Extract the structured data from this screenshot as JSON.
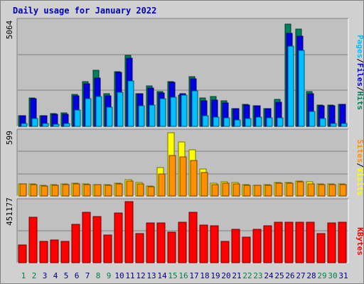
{
  "title": "Daily usage for January 2022",
  "colors": {
    "hits": "#00805c",
    "files": "#0000e0",
    "pages": "#00c0ff",
    "visits": "#ffff00",
    "sites": "#ff9000",
    "kbytes": "#ff0000",
    "weekday_label": "#000080",
    "weekend_label": "#00804a",
    "panel_bg": "#c0c0c0",
    "frame_bg": "#d0d0d0",
    "title": "#0000c0"
  },
  "chart_data": [
    {
      "type": "bar",
      "title": "Daily usage for January 2022",
      "categories": [
        "1",
        "2",
        "3",
        "4",
        "5",
        "6",
        "7",
        "8",
        "9",
        "10",
        "11",
        "12",
        "13",
        "14",
        "15",
        "16",
        "17",
        "18",
        "19",
        "20",
        "21",
        "22",
        "23",
        "24",
        "25",
        "26",
        "27",
        "28",
        "29",
        "30",
        "31"
      ],
      "weekend_days": [
        1,
        2,
        8,
        9,
        15,
        16,
        22,
        23,
        29,
        30
      ],
      "ymax_label": "5064",
      "ylim": [
        0,
        5064
      ],
      "grid": true,
      "ylabel_parts": [
        "Pages",
        "/",
        "Files",
        "/",
        "Hits"
      ],
      "series": [
        {
          "name": "Hits",
          "values": [
            530,
            1370,
            530,
            600,
            640,
            1530,
            2140,
            2710,
            1560,
            2650,
            3420,
            1580,
            1950,
            1690,
            2170,
            1510,
            2400,
            1360,
            1440,
            1240,
            870,
            1070,
            1000,
            870,
            1300,
            4940,
            4680,
            1660,
            1030,
            1030,
            1070
          ]
        },
        {
          "name": "Files",
          "values": [
            510,
            1330,
            500,
            570,
            590,
            1460,
            2060,
            2330,
            1480,
            2590,
            3280,
            1560,
            1840,
            1620,
            2120,
            1590,
            2290,
            1220,
            1260,
            1140,
            840,
            1030,
            990,
            840,
            1160,
            4470,
            4330,
            1580,
            990,
            990,
            1050
          ]
        },
        {
          "name": "Pages",
          "values": [
            130,
            380,
            120,
            110,
            130,
            800,
            1340,
            1450,
            930,
            1640,
            2200,
            1000,
            1020,
            1320,
            1410,
            1490,
            1700,
            530,
            440,
            410,
            300,
            380,
            440,
            400,
            420,
            3880,
            3670,
            720,
            370,
            140,
            140
          ]
        }
      ]
    },
    {
      "type": "bar",
      "categories": [
        "1",
        "2",
        "3",
        "4",
        "5",
        "6",
        "7",
        "8",
        "9",
        "10",
        "11",
        "12",
        "13",
        "14",
        "15",
        "16",
        "17",
        "18",
        "19",
        "20",
        "21",
        "22",
        "23",
        "24",
        "25",
        "26",
        "27",
        "28",
        "29",
        "30",
        "31"
      ],
      "ymax_label": "599",
      "ylim": [
        0,
        599
      ],
      "grid": true,
      "ylabel_parts": [
        "Sites",
        "/",
        "Visits"
      ],
      "series": [
        {
          "name": "Visits",
          "values": [
            115,
            112,
            97,
            106,
            115,
            121,
            112,
            108,
            108,
            121,
            155,
            128,
            93,
            268,
            592,
            504,
            433,
            250,
            120,
            130,
            128,
            105,
            103,
            108,
            128,
            126,
            139,
            130,
            115,
            116,
            114
          ]
        },
        {
          "name": "Sites",
          "values": [
            110,
            106,
            93,
            100,
            108,
            115,
            105,
            104,
            103,
            115,
            139,
            114,
            88,
            208,
            382,
            367,
            331,
            220,
            104,
            117,
            114,
            100,
            99,
            103,
            118,
            118,
            133,
            114,
            108,
            109,
            107
          ]
        }
      ]
    },
    {
      "type": "bar",
      "categories": [
        "1",
        "2",
        "3",
        "4",
        "5",
        "6",
        "7",
        "8",
        "9",
        "10",
        "11",
        "12",
        "13",
        "14",
        "15",
        "16",
        "17",
        "18",
        "19",
        "20",
        "21",
        "22",
        "23",
        "24",
        "25",
        "26",
        "27",
        "28",
        "29",
        "30",
        "31"
      ],
      "ymax_label": "451177",
      "ylim": [
        0,
        451177
      ],
      "grid": true,
      "ylabel_parts": [
        "KBytes"
      ],
      "series": [
        {
          "name": "KBytes",
          "values": [
            132000,
            338000,
            160000,
            167000,
            160000,
            285000,
            375000,
            339000,
            204000,
            369000,
            451177,
            215000,
            293000,
            295000,
            227000,
            301000,
            375000,
            277000,
            274000,
            157000,
            246000,
            191000,
            244000,
            271000,
            300000,
            301000,
            297000,
            297000,
            213000,
            293000,
            300000
          ]
        }
      ]
    }
  ]
}
